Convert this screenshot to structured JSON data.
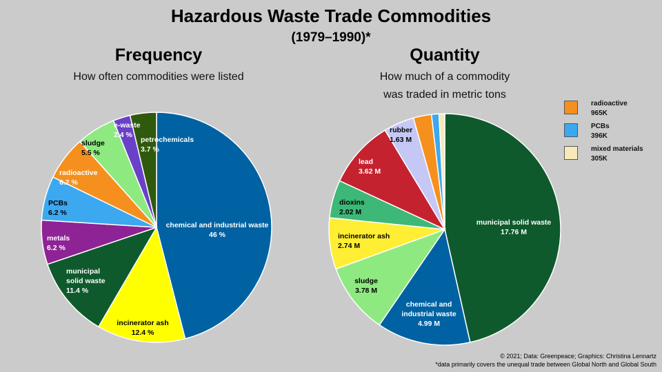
{
  "title": "Hazardous Waste Trade Commodities",
  "subtitle": "(1979–1990)*",
  "credit": "© 2021; Data: Greenpeace; Graphics: Christina Lennartz",
  "footnote": "*data primarily covers the unequal trade between Global North and Global South",
  "chart_data": [
    {
      "type": "pie",
      "title": "Frequency",
      "subtitle_lines": [
        "How often commodities were listed"
      ],
      "slices": [
        {
          "label": "chemical and industrial waste",
          "value": 46,
          "display": "46 %",
          "color": "#0062a3"
        },
        {
          "label": "incinerator ash",
          "value": 12.4,
          "display": "12.4 %",
          "color": "#ffff00"
        },
        {
          "label": "municipal solid waste",
          "value": 11.4,
          "display": "11.4 %",
          "color": "#0f5a2c"
        },
        {
          "label": "metals",
          "value": 6.2,
          "display": "6.2 %",
          "color": "#8e2395"
        },
        {
          "label": "PCBs",
          "value": 6.2,
          "display": "6.2 %",
          "color": "#3ca8f0"
        },
        {
          "label": "radioactive",
          "value": 6.2,
          "display": "6.2 %",
          "color": "#f5901e"
        },
        {
          "label": "sludge",
          "value": 5.5,
          "display": "5.5 %",
          "color": "#8eea80"
        },
        {
          "label": "e-waste",
          "value": 2.4,
          "display": "2.4 %",
          "color": "#6a40c8"
        },
        {
          "label": "petrochemicals",
          "value": 3.7,
          "display": "3.7 %",
          "color": "#2f5a0e"
        }
      ]
    },
    {
      "type": "pie",
      "title": "Quantity",
      "subtitle_lines": [
        "How much of a commodity",
        "was traded in metric tons"
      ],
      "slices": [
        {
          "label": "municipal solid waste",
          "value": 17.76,
          "display": "17.76 M",
          "color": "#0f5a2c"
        },
        {
          "label": "chemical and industrial waste",
          "value": 4.99,
          "display": "4.99 M",
          "color": "#0062a3"
        },
        {
          "label": "sludge",
          "value": 3.78,
          "display": "3.78 M",
          "color": "#8eea80"
        },
        {
          "label": "incinerator ash",
          "value": 2.74,
          "display": "2.74 M",
          "color": "#ffee33"
        },
        {
          "label": "dioxins",
          "value": 2.02,
          "display": "2.02 M",
          "color": "#3db877"
        },
        {
          "label": "lead",
          "value": 3.62,
          "display": "3.62 M",
          "color": "#c4222f"
        },
        {
          "label": "rubber",
          "value": 1.63,
          "display": "1.63 M",
          "color": "#c5c8f5"
        },
        {
          "label": "radioactive",
          "value": 0.965,
          "display": "965K",
          "color": "#f5901e"
        },
        {
          "label": "PCBs",
          "value": 0.396,
          "display": "396K",
          "color": "#3ca8f0"
        },
        {
          "label": "mixed materials",
          "value": 0.305,
          "display": "305K",
          "color": "#f8e9b8"
        }
      ]
    }
  ],
  "legend": [
    {
      "label": "radioactive",
      "value": "965K",
      "color": "#f5901e"
    },
    {
      "label": "PCBs",
      "value": "396K",
      "color": "#3ca8f0"
    },
    {
      "label": "mixed materials",
      "value": "305K",
      "color": "#f8e9b8"
    }
  ]
}
